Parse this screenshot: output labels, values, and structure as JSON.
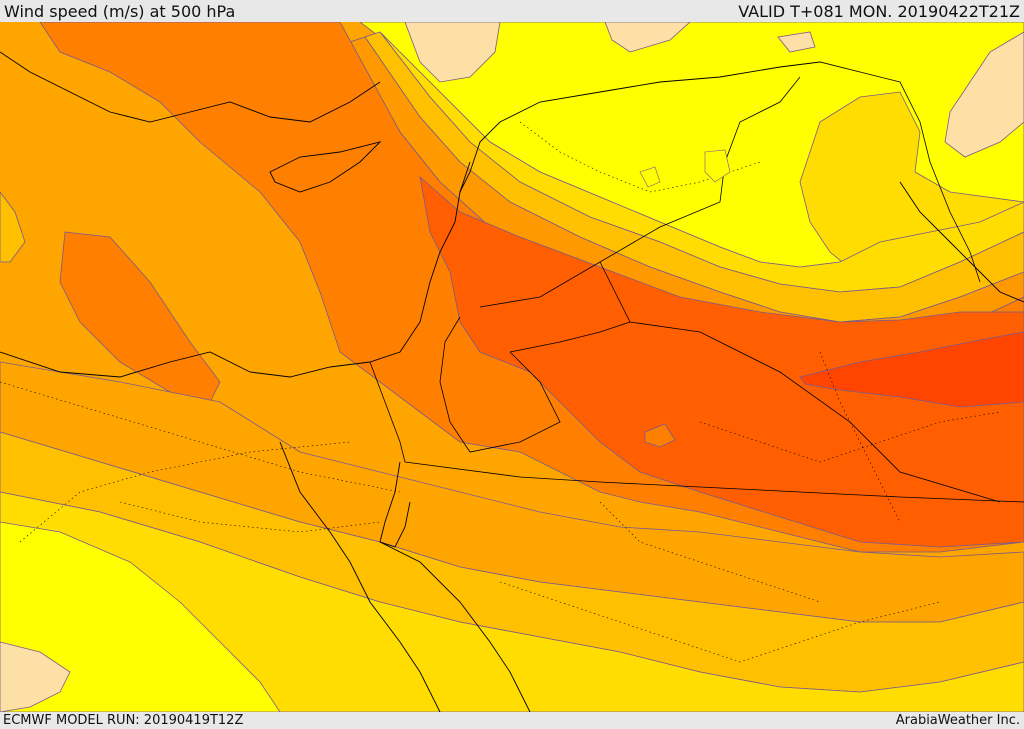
{
  "header": {
    "title": "Wind speed (m/s) at 500 hPa",
    "valid": "VALID T+081 MON. 20190422T21Z"
  },
  "footer": {
    "model_run": "ECMWF MODEL RUN: 20190419T12Z",
    "credit": "ArabiaWeather Inc."
  },
  "map": {
    "field": "wind speed 500 hPa",
    "colors": {
      "very_light": "#fde0a6",
      "yellow": "#ffff00",
      "gold": "#ffdd00",
      "amber": "#ffc000",
      "orange_light": "#ffa500",
      "orange": "#ff9900",
      "orange_dark": "#ff7f00",
      "red_orange": "#ff5f00",
      "red": "#ff4500",
      "contour": "#7a5a8a",
      "border": "#000000"
    }
  }
}
